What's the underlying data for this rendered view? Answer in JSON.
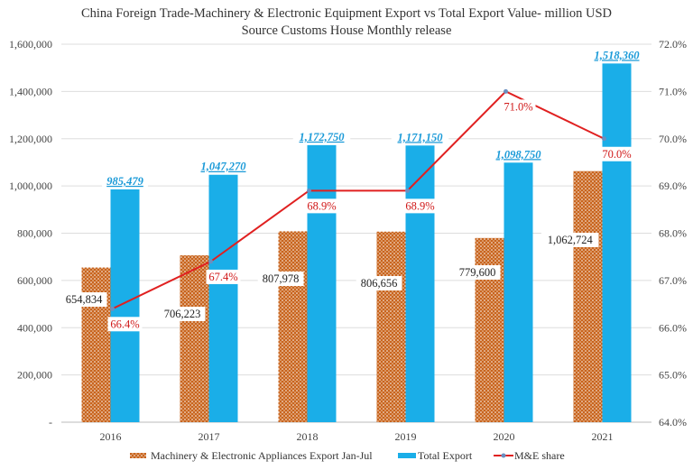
{
  "chart_data": {
    "type": "bar",
    "title": "China Foreign Trade-Machinery & Electronic Equipment Export vs Total Export Value- million USD",
    "subtitle": "Source Customs House Monthly release",
    "categories": [
      "2016",
      "2017",
      "2018",
      "2019",
      "2020",
      "2021"
    ],
    "y_left": {
      "range": [
        0,
        1600000
      ],
      "ticks": [
        "-",
        "200,000",
        "400,000",
        "600,000",
        "800,000",
        "1,000,000",
        "1,200,000",
        "1,400,000",
        "1,600,000"
      ]
    },
    "y_right": {
      "range": [
        64.0,
        72.0
      ],
      "ticks": [
        "64.0%",
        "65.0%",
        "66.0%",
        "67.0%",
        "68.0%",
        "69.0%",
        "70.0%",
        "71.0%",
        "72.0%"
      ]
    },
    "grid": true,
    "legend_placement": "bottom",
    "series": [
      {
        "name": "Machinery & Electronic Appliances Export Jan-Jul",
        "type": "bar",
        "axis": "left",
        "color": "#c8641e",
        "pattern": "dotted-hatch",
        "values": [
          654834,
          706223,
          807978,
          806656,
          779600,
          1062724
        ],
        "labels": [
          "654,834",
          "706,223",
          "807,978",
          "806,656",
          "779,600",
          "1,062,724"
        ]
      },
      {
        "name": "Total Export",
        "type": "bar",
        "axis": "left",
        "color": "#1aaee8",
        "values": [
          985479,
          1047270,
          1172750,
          1171150,
          1098750,
          1518360
        ],
        "labels": [
          "985,479",
          "1,047,270",
          "1,172,750",
          "1,171,150",
          "1,098,750",
          "1,518,360"
        ]
      },
      {
        "name": "M&E share",
        "type": "line",
        "axis": "right",
        "color": "#e02020",
        "marker_color": "#6a8fc0",
        "values": [
          66.4,
          67.4,
          68.9,
          68.9,
          71.0,
          70.0
        ],
        "labels": [
          "66.4%",
          "67.4%",
          "68.9%",
          "68.9%",
          "71.0%",
          "70.0%"
        ]
      }
    ]
  }
}
